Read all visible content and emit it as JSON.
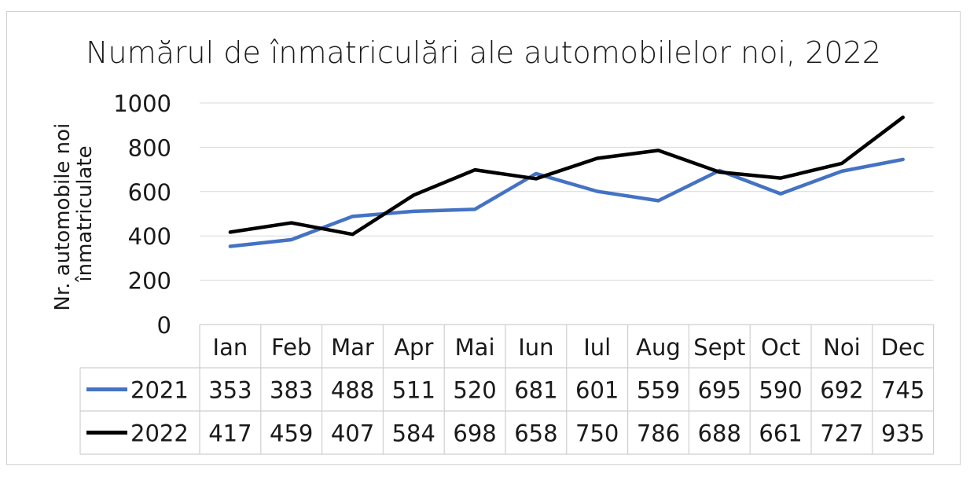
{
  "chart_data": {
    "type": "line",
    "title": "Numărul de înmatriculări ale automobilelor noi, 2022",
    "ylabel": "Nr. automobile noi înmatriculate",
    "xlabel": "",
    "categories": [
      "Ian",
      "Feb",
      "Mar",
      "Apr",
      "Mai",
      "Iun",
      "Iul",
      "Aug",
      "Sept",
      "Oct",
      "Noi",
      "Dec"
    ],
    "ylim": [
      0,
      1000
    ],
    "yticks": [
      "0",
      "200",
      "400",
      "600",
      "800",
      "1000"
    ],
    "grid": true,
    "legend": "data-table",
    "series": [
      {
        "name": "2021",
        "color": "#4472c4",
        "values": [
          353,
          383,
          488,
          511,
          520,
          681,
          601,
          559,
          695,
          590,
          692,
          745
        ]
      },
      {
        "name": "2022",
        "color": "#000000",
        "values": [
          417,
          459,
          407,
          584,
          698,
          658,
          750,
          786,
          688,
          661,
          727,
          935
        ]
      }
    ]
  }
}
